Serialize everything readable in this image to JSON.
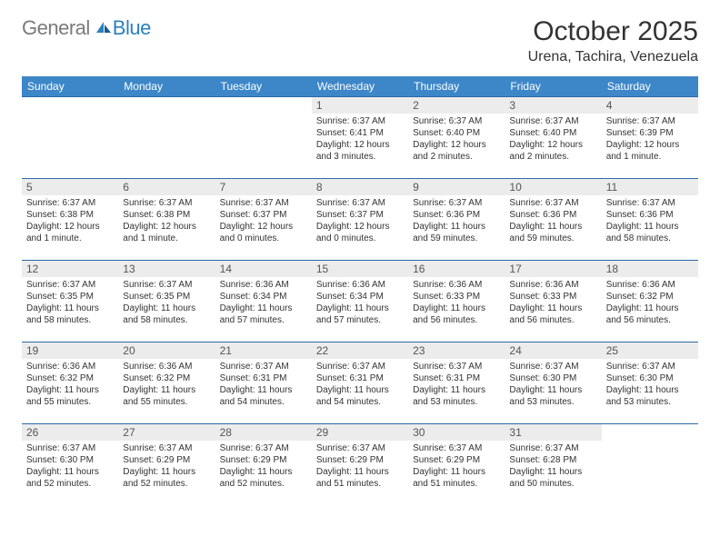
{
  "logo": {
    "text1": "General",
    "text2": "Blue"
  },
  "title": "October 2025",
  "location": "Urena, Tachira, Venezuela",
  "colors": {
    "header_bg": "#3d87c9",
    "header_text": "#ffffff",
    "week_border": "#2b6aa8",
    "daynum_bg": "#ececec",
    "logo_gray": "#7a7a7a",
    "logo_blue": "#2b7fbf"
  },
  "weekdays": [
    "Sunday",
    "Monday",
    "Tuesday",
    "Wednesday",
    "Thursday",
    "Friday",
    "Saturday"
  ],
  "weeks": [
    [
      null,
      null,
      null,
      {
        "n": "1",
        "sr": "Sunrise: 6:37 AM",
        "ss": "Sunset: 6:41 PM",
        "dl": "Daylight: 12 hours and 3 minutes."
      },
      {
        "n": "2",
        "sr": "Sunrise: 6:37 AM",
        "ss": "Sunset: 6:40 PM",
        "dl": "Daylight: 12 hours and 2 minutes."
      },
      {
        "n": "3",
        "sr": "Sunrise: 6:37 AM",
        "ss": "Sunset: 6:40 PM",
        "dl": "Daylight: 12 hours and 2 minutes."
      },
      {
        "n": "4",
        "sr": "Sunrise: 6:37 AM",
        "ss": "Sunset: 6:39 PM",
        "dl": "Daylight: 12 hours and 1 minute."
      }
    ],
    [
      {
        "n": "5",
        "sr": "Sunrise: 6:37 AM",
        "ss": "Sunset: 6:38 PM",
        "dl": "Daylight: 12 hours and 1 minute."
      },
      {
        "n": "6",
        "sr": "Sunrise: 6:37 AM",
        "ss": "Sunset: 6:38 PM",
        "dl": "Daylight: 12 hours and 1 minute."
      },
      {
        "n": "7",
        "sr": "Sunrise: 6:37 AM",
        "ss": "Sunset: 6:37 PM",
        "dl": "Daylight: 12 hours and 0 minutes."
      },
      {
        "n": "8",
        "sr": "Sunrise: 6:37 AM",
        "ss": "Sunset: 6:37 PM",
        "dl": "Daylight: 12 hours and 0 minutes."
      },
      {
        "n": "9",
        "sr": "Sunrise: 6:37 AM",
        "ss": "Sunset: 6:36 PM",
        "dl": "Daylight: 11 hours and 59 minutes."
      },
      {
        "n": "10",
        "sr": "Sunrise: 6:37 AM",
        "ss": "Sunset: 6:36 PM",
        "dl": "Daylight: 11 hours and 59 minutes."
      },
      {
        "n": "11",
        "sr": "Sunrise: 6:37 AM",
        "ss": "Sunset: 6:36 PM",
        "dl": "Daylight: 11 hours and 58 minutes."
      }
    ],
    [
      {
        "n": "12",
        "sr": "Sunrise: 6:37 AM",
        "ss": "Sunset: 6:35 PM",
        "dl": "Daylight: 11 hours and 58 minutes."
      },
      {
        "n": "13",
        "sr": "Sunrise: 6:37 AM",
        "ss": "Sunset: 6:35 PM",
        "dl": "Daylight: 11 hours and 58 minutes."
      },
      {
        "n": "14",
        "sr": "Sunrise: 6:36 AM",
        "ss": "Sunset: 6:34 PM",
        "dl": "Daylight: 11 hours and 57 minutes."
      },
      {
        "n": "15",
        "sr": "Sunrise: 6:36 AM",
        "ss": "Sunset: 6:34 PM",
        "dl": "Daylight: 11 hours and 57 minutes."
      },
      {
        "n": "16",
        "sr": "Sunrise: 6:36 AM",
        "ss": "Sunset: 6:33 PM",
        "dl": "Daylight: 11 hours and 56 minutes."
      },
      {
        "n": "17",
        "sr": "Sunrise: 6:36 AM",
        "ss": "Sunset: 6:33 PM",
        "dl": "Daylight: 11 hours and 56 minutes."
      },
      {
        "n": "18",
        "sr": "Sunrise: 6:36 AM",
        "ss": "Sunset: 6:32 PM",
        "dl": "Daylight: 11 hours and 56 minutes."
      }
    ],
    [
      {
        "n": "19",
        "sr": "Sunrise: 6:36 AM",
        "ss": "Sunset: 6:32 PM",
        "dl": "Daylight: 11 hours and 55 minutes."
      },
      {
        "n": "20",
        "sr": "Sunrise: 6:36 AM",
        "ss": "Sunset: 6:32 PM",
        "dl": "Daylight: 11 hours and 55 minutes."
      },
      {
        "n": "21",
        "sr": "Sunrise: 6:37 AM",
        "ss": "Sunset: 6:31 PM",
        "dl": "Daylight: 11 hours and 54 minutes."
      },
      {
        "n": "22",
        "sr": "Sunrise: 6:37 AM",
        "ss": "Sunset: 6:31 PM",
        "dl": "Daylight: 11 hours and 54 minutes."
      },
      {
        "n": "23",
        "sr": "Sunrise: 6:37 AM",
        "ss": "Sunset: 6:31 PM",
        "dl": "Daylight: 11 hours and 53 minutes."
      },
      {
        "n": "24",
        "sr": "Sunrise: 6:37 AM",
        "ss": "Sunset: 6:30 PM",
        "dl": "Daylight: 11 hours and 53 minutes."
      },
      {
        "n": "25",
        "sr": "Sunrise: 6:37 AM",
        "ss": "Sunset: 6:30 PM",
        "dl": "Daylight: 11 hours and 53 minutes."
      }
    ],
    [
      {
        "n": "26",
        "sr": "Sunrise: 6:37 AM",
        "ss": "Sunset: 6:30 PM",
        "dl": "Daylight: 11 hours and 52 minutes."
      },
      {
        "n": "27",
        "sr": "Sunrise: 6:37 AM",
        "ss": "Sunset: 6:29 PM",
        "dl": "Daylight: 11 hours and 52 minutes."
      },
      {
        "n": "28",
        "sr": "Sunrise: 6:37 AM",
        "ss": "Sunset: 6:29 PM",
        "dl": "Daylight: 11 hours and 52 minutes."
      },
      {
        "n": "29",
        "sr": "Sunrise: 6:37 AM",
        "ss": "Sunset: 6:29 PM",
        "dl": "Daylight: 11 hours and 51 minutes."
      },
      {
        "n": "30",
        "sr": "Sunrise: 6:37 AM",
        "ss": "Sunset: 6:29 PM",
        "dl": "Daylight: 11 hours and 51 minutes."
      },
      {
        "n": "31",
        "sr": "Sunrise: 6:37 AM",
        "ss": "Sunset: 6:28 PM",
        "dl": "Daylight: 11 hours and 50 minutes."
      },
      null
    ]
  ]
}
